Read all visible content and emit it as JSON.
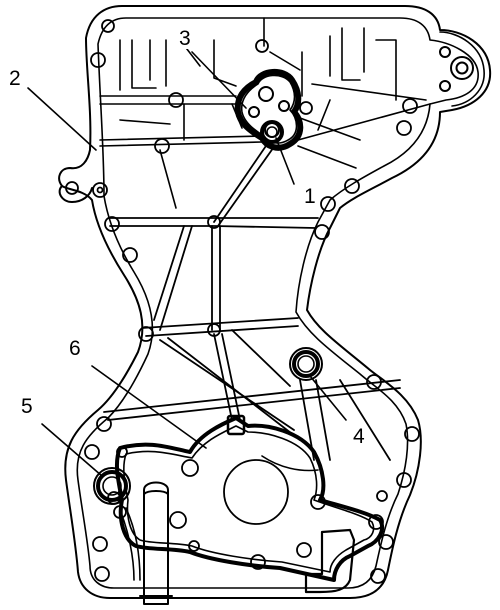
{
  "diagram": {
    "callouts": [
      {
        "id": "c1",
        "label": "1"
      },
      {
        "id": "c2",
        "label": "2"
      },
      {
        "id": "c3",
        "label": "3"
      },
      {
        "id": "c4",
        "label": "4"
      },
      {
        "id": "c5",
        "label": "5"
      },
      {
        "id": "c6",
        "label": "6"
      }
    ]
  }
}
